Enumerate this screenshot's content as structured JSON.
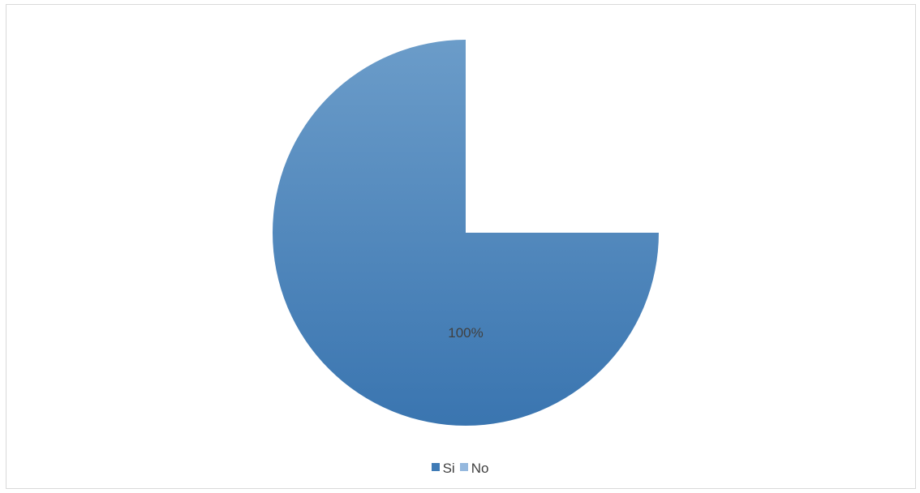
{
  "chart_data": {
    "type": "pie",
    "title": "",
    "slices": [
      {
        "label": "Si",
        "value": 100,
        "data_label": "100%",
        "color": "#3f7bb6"
      },
      {
        "label": "No",
        "value": 0,
        "data_label": "",
        "color": "#95b8de"
      }
    ],
    "missing_wedge_fraction": 0.25,
    "legend_position": "bottom",
    "gradient": {
      "top": "#6b9cc9",
      "bottom": "#3a75b0"
    },
    "label_color": "#404040"
  }
}
